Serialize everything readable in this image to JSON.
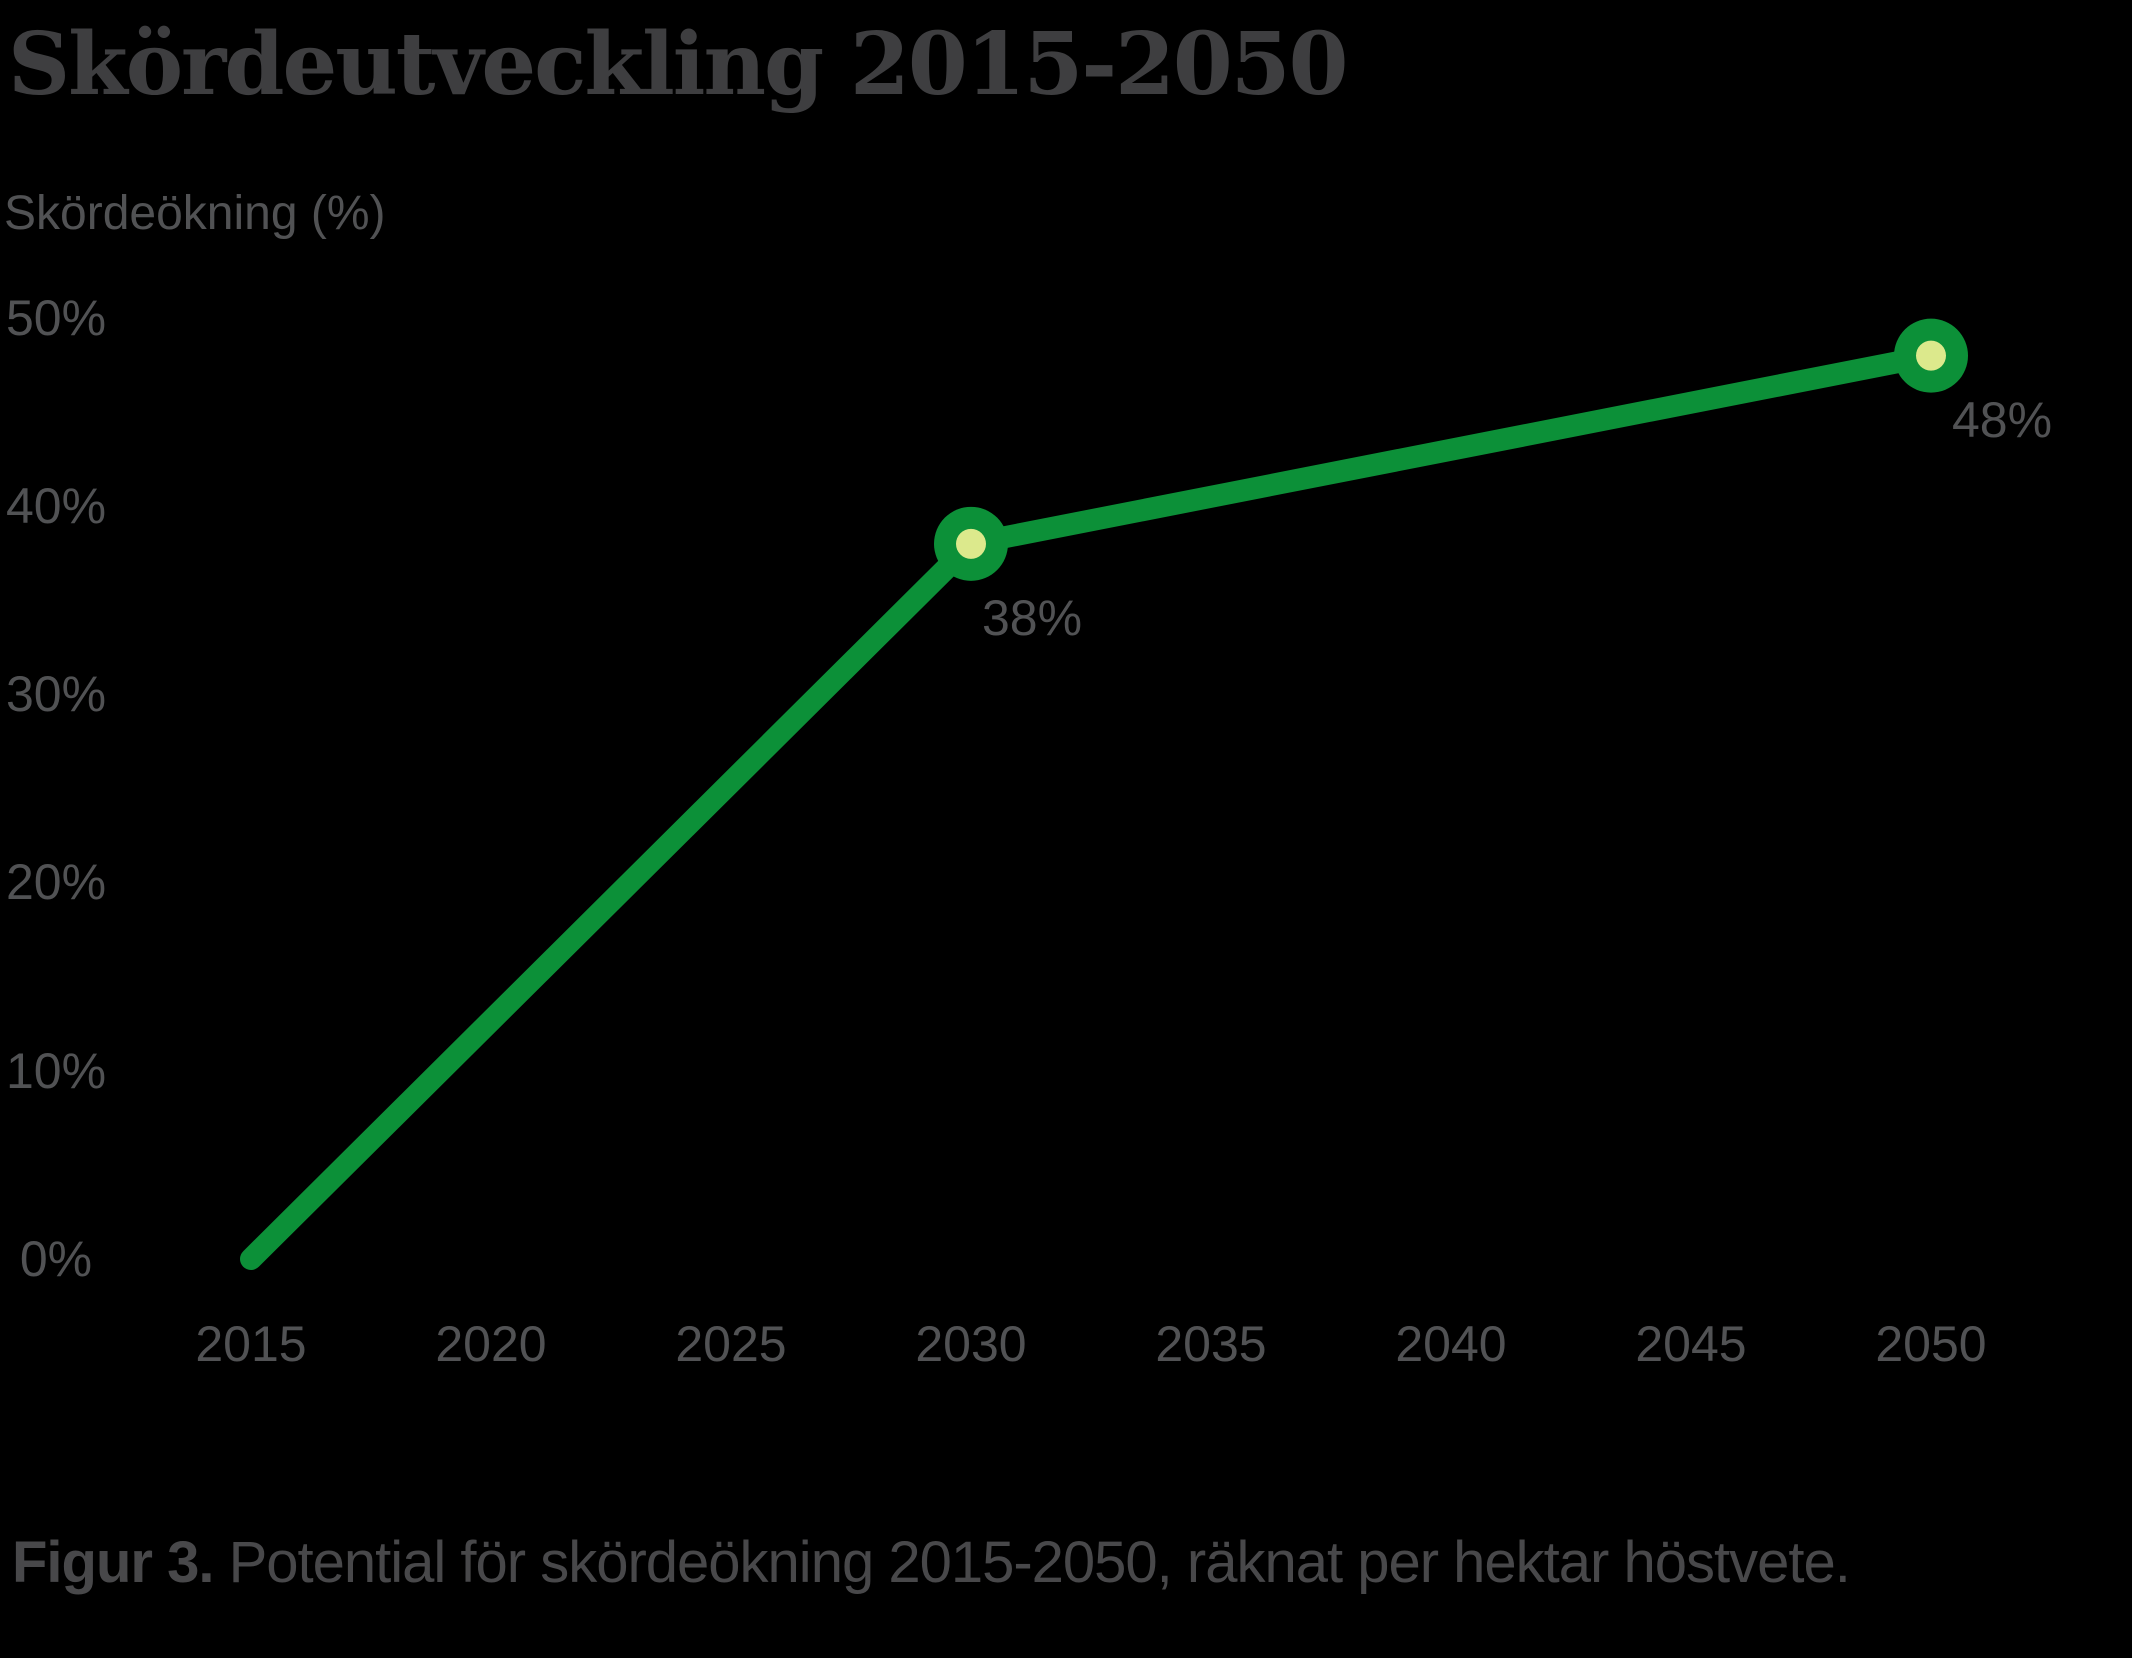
{
  "chart_data": {
    "type": "line",
    "title": "Skördeutveckling 2015-2050",
    "ylabel": "Skördeökning (%)",
    "xlabel": "",
    "x": [
      2015,
      2030,
      2050
    ],
    "y": [
      0,
      38,
      48
    ],
    "point_labels": [
      "",
      "38%",
      "48%"
    ],
    "markers": [
      false,
      true,
      true
    ],
    "x_ticks": [
      "2015",
      "2020",
      "2025",
      "2030",
      "2035",
      "2040",
      "2045",
      "2050"
    ],
    "y_ticks": [
      "50%",
      "40%",
      "30%",
      "20%",
      "10%",
      "0%"
    ],
    "xlim": [
      2015,
      2050
    ],
    "ylim": [
      0,
      50
    ],
    "grid": false,
    "legend": "none",
    "colors": {
      "background": "#000000",
      "line": "#0c9038",
      "marker_outer": "#0c9038",
      "marker_inner": "#dce98c",
      "title_text": "#3e3e40",
      "axis_text": "#515254",
      "caption_text": "#48484a"
    }
  },
  "caption": {
    "prefix_bold": "Figur 3. ",
    "text": "Potential för skördeökning 2015-2050, räknat per hektar höstvete."
  }
}
